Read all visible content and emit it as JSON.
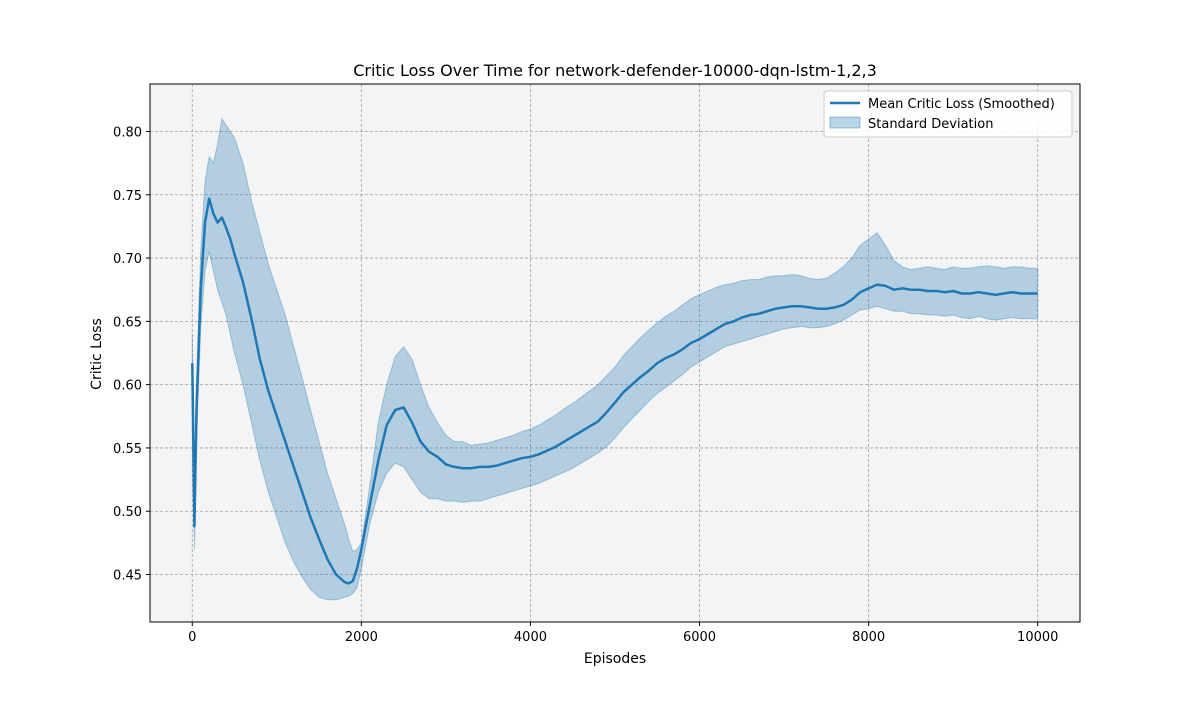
{
  "chart_data": {
    "type": "line",
    "title": "Critic Loss Over Time for network-defender-10000-dqn-lstm-1,2,3",
    "xlabel": "Episodes",
    "ylabel": "Critic Loss",
    "xlim": [
      -500,
      10500
    ],
    "ylim": [
      0.4125,
      0.8375
    ],
    "x_ticks": [
      0,
      2000,
      4000,
      6000,
      8000,
      10000
    ],
    "x_tick_labels": [
      "0",
      "2000",
      "4000",
      "6000",
      "8000",
      "10000"
    ],
    "y_ticks": [
      0.45,
      0.5,
      0.55,
      0.6,
      0.65,
      0.7,
      0.75,
      0.8
    ],
    "y_tick_labels": [
      "0.45",
      "0.50",
      "0.55",
      "0.60",
      "0.65",
      "0.70",
      "0.75",
      "0.80"
    ],
    "grid": true,
    "legend_placement": "top-right",
    "background_color": "#f4f4f4",
    "series": [
      {
        "name": "Mean Critic Loss (Smoothed)",
        "kind": "line",
        "color": "#1f77b4",
        "x": [
          0,
          25,
          50,
          100,
          150,
          200,
          250,
          300,
          350,
          400,
          450,
          500,
          600,
          700,
          800,
          900,
          1000,
          1100,
          1200,
          1300,
          1400,
          1500,
          1600,
          1700,
          1800,
          1850,
          1900,
          1950,
          2000,
          2100,
          2200,
          2300,
          2400,
          2500,
          2600,
          2700,
          2800,
          2900,
          3000,
          3100,
          3200,
          3300,
          3400,
          3500,
          3600,
          3700,
          3800,
          3900,
          4000,
          4100,
          4200,
          4300,
          4400,
          4500,
          4600,
          4700,
          4800,
          4900,
          5000,
          5100,
          5200,
          5300,
          5400,
          5500,
          5600,
          5700,
          5800,
          5900,
          6000,
          6100,
          6200,
          6300,
          6400,
          6500,
          6600,
          6700,
          6800,
          6900,
          7000,
          7100,
          7200,
          7300,
          7400,
          7500,
          7600,
          7700,
          7800,
          7900,
          8000,
          8100,
          8200,
          8300,
          8400,
          8500,
          8600,
          8700,
          8800,
          8900,
          9000,
          9100,
          9200,
          9300,
          9400,
          9500,
          9600,
          9700,
          9800,
          9900,
          10000
        ],
        "y": [
          0.617,
          0.488,
          0.58,
          0.675,
          0.728,
          0.747,
          0.735,
          0.728,
          0.732,
          0.724,
          0.715,
          0.703,
          0.681,
          0.652,
          0.62,
          0.595,
          0.575,
          0.555,
          0.535,
          0.515,
          0.495,
          0.478,
          0.462,
          0.45,
          0.444,
          0.443,
          0.445,
          0.455,
          0.47,
          0.505,
          0.54,
          0.568,
          0.58,
          0.582,
          0.57,
          0.555,
          0.547,
          0.543,
          0.537,
          0.535,
          0.534,
          0.534,
          0.535,
          0.535,
          0.536,
          0.538,
          0.54,
          0.542,
          0.543,
          0.545,
          0.548,
          0.551,
          0.555,
          0.559,
          0.563,
          0.567,
          0.571,
          0.578,
          0.586,
          0.594,
          0.6,
          0.606,
          0.611,
          0.617,
          0.621,
          0.624,
          0.628,
          0.633,
          0.636,
          0.64,
          0.644,
          0.648,
          0.65,
          0.653,
          0.655,
          0.656,
          0.658,
          0.66,
          0.661,
          0.662,
          0.662,
          0.661,
          0.66,
          0.66,
          0.661,
          0.663,
          0.667,
          0.673,
          0.676,
          0.679,
          0.678,
          0.675,
          0.676,
          0.675,
          0.675,
          0.674,
          0.674,
          0.673,
          0.674,
          0.672,
          0.672,
          0.673,
          0.672,
          0.671,
          0.672,
          0.673,
          0.672,
          0.672,
          0.672
        ]
      },
      {
        "name": "Standard Deviation",
        "kind": "band",
        "color": "#1f77b4",
        "opacity": 0.3,
        "x": [
          0,
          25,
          50,
          100,
          150,
          200,
          250,
          300,
          350,
          400,
          450,
          500,
          600,
          700,
          800,
          900,
          1000,
          1100,
          1200,
          1300,
          1400,
          1500,
          1600,
          1700,
          1800,
          1850,
          1900,
          1950,
          2000,
          2100,
          2200,
          2300,
          2400,
          2500,
          2600,
          2700,
          2800,
          2900,
          3000,
          3100,
          3200,
          3300,
          3400,
          3500,
          3600,
          3700,
          3800,
          3900,
          4000,
          4100,
          4200,
          4300,
          4400,
          4500,
          4600,
          4700,
          4800,
          4900,
          5000,
          5100,
          5200,
          5300,
          5400,
          5500,
          5600,
          5700,
          5800,
          5900,
          6000,
          6100,
          6200,
          6300,
          6400,
          6500,
          6600,
          6700,
          6800,
          6900,
          7000,
          7100,
          7200,
          7300,
          7400,
          7500,
          7600,
          7700,
          7800,
          7900,
          8000,
          8100,
          8200,
          8300,
          8400,
          8500,
          8600,
          8700,
          8800,
          8900,
          9000,
          9100,
          9200,
          9300,
          9400,
          9500,
          9600,
          9700,
          9800,
          9900,
          10000
        ],
        "upper": [
          0.64,
          0.51,
          0.6,
          0.705,
          0.76,
          0.78,
          0.775,
          0.79,
          0.81,
          0.805,
          0.8,
          0.795,
          0.775,
          0.745,
          0.72,
          0.695,
          0.675,
          0.655,
          0.63,
          0.605,
          0.58,
          0.555,
          0.53,
          0.51,
          0.49,
          0.478,
          0.468,
          0.47,
          0.475,
          0.52,
          0.57,
          0.6,
          0.622,
          0.63,
          0.62,
          0.6,
          0.582,
          0.57,
          0.56,
          0.555,
          0.555,
          0.552,
          0.553,
          0.554,
          0.556,
          0.558,
          0.56,
          0.563,
          0.565,
          0.568,
          0.572,
          0.576,
          0.581,
          0.585,
          0.59,
          0.595,
          0.6,
          0.607,
          0.614,
          0.623,
          0.63,
          0.637,
          0.643,
          0.649,
          0.654,
          0.658,
          0.663,
          0.668,
          0.671,
          0.674,
          0.677,
          0.679,
          0.68,
          0.682,
          0.683,
          0.683,
          0.685,
          0.686,
          0.686,
          0.687,
          0.686,
          0.684,
          0.683,
          0.684,
          0.688,
          0.693,
          0.7,
          0.71,
          0.715,
          0.72,
          0.71,
          0.698,
          0.693,
          0.691,
          0.692,
          0.693,
          0.692,
          0.691,
          0.693,
          0.692,
          0.692,
          0.693,
          0.694,
          0.693,
          0.692,
          0.693,
          0.693,
          0.692,
          0.692
        ],
        "lower": [
          0.59,
          0.47,
          0.555,
          0.645,
          0.69,
          0.705,
          0.69,
          0.675,
          0.665,
          0.655,
          0.64,
          0.625,
          0.6,
          0.57,
          0.54,
          0.515,
          0.495,
          0.475,
          0.46,
          0.448,
          0.438,
          0.432,
          0.43,
          0.43,
          0.432,
          0.433,
          0.435,
          0.44,
          0.455,
          0.49,
          0.515,
          0.53,
          0.538,
          0.535,
          0.525,
          0.515,
          0.51,
          0.51,
          0.508,
          0.508,
          0.507,
          0.508,
          0.508,
          0.51,
          0.512,
          0.514,
          0.516,
          0.518,
          0.52,
          0.522,
          0.525,
          0.528,
          0.531,
          0.534,
          0.538,
          0.542,
          0.546,
          0.551,
          0.558,
          0.566,
          0.573,
          0.58,
          0.587,
          0.593,
          0.598,
          0.603,
          0.608,
          0.614,
          0.618,
          0.622,
          0.626,
          0.63,
          0.632,
          0.634,
          0.636,
          0.638,
          0.64,
          0.642,
          0.644,
          0.645,
          0.646,
          0.645,
          0.645,
          0.646,
          0.648,
          0.651,
          0.655,
          0.659,
          0.66,
          0.662,
          0.66,
          0.658,
          0.658,
          0.656,
          0.656,
          0.655,
          0.655,
          0.654,
          0.655,
          0.653,
          0.652,
          0.654,
          0.652,
          0.651,
          0.652,
          0.653,
          0.652,
          0.652,
          0.652
        ]
      }
    ]
  }
}
